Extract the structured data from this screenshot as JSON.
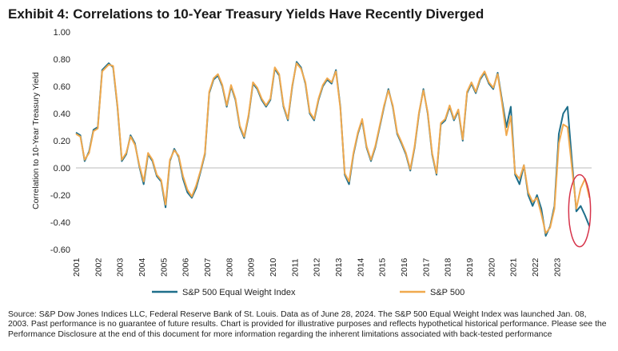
{
  "title": "Exhibit 4: Correlations to 10-Year Treasury Yields Have Recently Diverged",
  "source_note": "Source: S&P Dow Jones Indices LLC, Federal Reserve Bank of St. Louis.  Data as of June 28, 2024.  The S&P 500 Equal Weight Index was launched Jan. 08, 2003.  Past performance is no guarantee of future results.  Chart is provided for illustrative purposes and reflects hypothetical historical performance.  Please see the Performance Disclosure at the end of this document for more information regarding the inherent limitations associated with back-tested performance",
  "colors": {
    "equal_weight": "#1f6f8b",
    "sp500": "#f0a94e",
    "highlight": "#d6334a",
    "zero_line": "#bbbbbb"
  },
  "chart_data": {
    "type": "line",
    "title": "Exhibit 4: Correlations to 10-Year Treasury Yields Have Recently Diverged",
    "xlabel": "",
    "ylabel": "Correlation to 10-Year Treasury Yield",
    "xlim": [
      2001,
      2024.6
    ],
    "ylim": [
      -0.6,
      1.0
    ],
    "yticks": [
      1.0,
      0.8,
      0.6,
      0.4,
      0.2,
      0.0,
      -0.2,
      -0.4,
      -0.6
    ],
    "ytick_labels": [
      "1.00",
      "0.80",
      "0.60",
      "0.40",
      "0.20",
      "0.00",
      "-0.20",
      "-0.40",
      "-0.60"
    ],
    "xticks": [
      "2001",
      "2002",
      "2003",
      "2004",
      "2005",
      "2006",
      "2007",
      "2008",
      "2009",
      "2010",
      "2011",
      "2012",
      "2013",
      "2014",
      "2015",
      "2016",
      "2017",
      "2018",
      "2019",
      "2020",
      "2021",
      "2022",
      "2023"
    ],
    "legend_position": "bottom",
    "annotation": "red ellipse highlighting 2024 divergence",
    "x": [
      2001.0,
      2001.2,
      2001.4,
      2001.6,
      2001.8,
      2002.0,
      2002.2,
      2002.5,
      2002.7,
      2002.9,
      2003.1,
      2003.3,
      2003.5,
      2003.7,
      2003.9,
      2004.1,
      2004.3,
      2004.5,
      2004.7,
      2004.9,
      2005.1,
      2005.3,
      2005.5,
      2005.7,
      2005.9,
      2006.1,
      2006.3,
      2006.5,
      2006.7,
      2006.9,
      2007.1,
      2007.3,
      2007.5,
      2007.7,
      2007.9,
      2008.1,
      2008.3,
      2008.5,
      2008.7,
      2008.9,
      2009.1,
      2009.3,
      2009.5,
      2009.7,
      2009.9,
      2010.1,
      2010.3,
      2010.5,
      2010.7,
      2010.9,
      2011.1,
      2011.3,
      2011.5,
      2011.7,
      2011.9,
      2012.1,
      2012.3,
      2012.5,
      2012.7,
      2012.9,
      2013.1,
      2013.3,
      2013.5,
      2013.7,
      2013.9,
      2014.1,
      2014.3,
      2014.5,
      2014.7,
      2014.9,
      2015.1,
      2015.3,
      2015.5,
      2015.7,
      2015.9,
      2016.1,
      2016.3,
      2016.5,
      2016.7,
      2016.9,
      2017.1,
      2017.3,
      2017.5,
      2017.7,
      2017.9,
      2018.1,
      2018.3,
      2018.5,
      2018.7,
      2018.9,
      2019.1,
      2019.3,
      2019.5,
      2019.7,
      2019.9,
      2020.1,
      2020.3,
      2020.5,
      2020.7,
      2020.9,
      2021.1,
      2021.3,
      2021.5,
      2021.7,
      2021.9,
      2022.1,
      2022.3,
      2022.5,
      2022.7,
      2022.9,
      2023.1,
      2023.3,
      2023.5,
      2023.7,
      2023.9,
      2024.1,
      2024.3,
      2024.5
    ],
    "series": [
      {
        "name": "S&P 500 Equal Weight Index",
        "values": [
          0.26,
          0.24,
          0.05,
          0.12,
          0.28,
          0.3,
          0.72,
          0.77,
          0.74,
          0.45,
          0.05,
          0.1,
          0.24,
          0.18,
          0.01,
          -0.12,
          0.1,
          0.05,
          -0.06,
          -0.1,
          -0.29,
          0.05,
          0.14,
          0.08,
          -0.08,
          -0.18,
          -0.22,
          -0.15,
          -0.03,
          0.1,
          0.55,
          0.65,
          0.68,
          0.6,
          0.45,
          0.6,
          0.5,
          0.3,
          0.22,
          0.38,
          0.62,
          0.58,
          0.5,
          0.45,
          0.5,
          0.73,
          0.68,
          0.45,
          0.35,
          0.6,
          0.78,
          0.74,
          0.62,
          0.4,
          0.35,
          0.5,
          0.6,
          0.65,
          0.62,
          0.72,
          0.45,
          -0.05,
          -0.12,
          0.1,
          0.25,
          0.35,
          0.15,
          0.05,
          0.15,
          0.3,
          0.45,
          0.58,
          0.45,
          0.25,
          0.18,
          0.1,
          -0.02,
          0.15,
          0.4,
          0.58,
          0.4,
          0.1,
          -0.05,
          0.32,
          0.35,
          0.45,
          0.35,
          0.42,
          0.2,
          0.55,
          0.62,
          0.55,
          0.65,
          0.7,
          0.62,
          0.58,
          0.7,
          0.5,
          0.3,
          0.45,
          -0.05,
          -0.12,
          0.02,
          -0.2,
          -0.28,
          -0.2,
          -0.3,
          -0.5,
          -0.43,
          -0.28,
          0.25,
          0.4,
          0.45,
          0.05,
          -0.32,
          -0.28,
          -0.35,
          -0.43
        ]
      },
      {
        "name": "S&P 500",
        "values": [
          0.25,
          0.23,
          0.06,
          0.11,
          0.27,
          0.29,
          0.71,
          0.76,
          0.75,
          0.46,
          0.06,
          0.11,
          0.23,
          0.17,
          0.02,
          -0.1,
          0.11,
          0.06,
          -0.05,
          -0.09,
          -0.27,
          0.06,
          0.13,
          0.09,
          -0.06,
          -0.16,
          -0.21,
          -0.13,
          -0.02,
          0.11,
          0.56,
          0.66,
          0.69,
          0.61,
          0.46,
          0.61,
          0.51,
          0.31,
          0.23,
          0.39,
          0.63,
          0.59,
          0.51,
          0.46,
          0.51,
          0.74,
          0.69,
          0.46,
          0.36,
          0.61,
          0.77,
          0.73,
          0.63,
          0.41,
          0.36,
          0.51,
          0.61,
          0.66,
          0.63,
          0.71,
          0.44,
          -0.04,
          -0.1,
          0.11,
          0.26,
          0.36,
          0.16,
          0.06,
          0.16,
          0.31,
          0.46,
          0.57,
          0.46,
          0.26,
          0.19,
          0.11,
          -0.01,
          0.16,
          0.41,
          0.57,
          0.41,
          0.11,
          -0.04,
          0.33,
          0.36,
          0.46,
          0.36,
          0.43,
          0.21,
          0.56,
          0.63,
          0.56,
          0.66,
          0.71,
          0.63,
          0.59,
          0.69,
          0.48,
          0.24,
          0.38,
          -0.04,
          -0.08,
          0.02,
          -0.18,
          -0.25,
          -0.22,
          -0.34,
          -0.48,
          -0.44,
          -0.3,
          0.18,
          0.32,
          0.3,
          0.0,
          -0.3,
          -0.15,
          -0.08,
          -0.22
        ]
      }
    ]
  }
}
